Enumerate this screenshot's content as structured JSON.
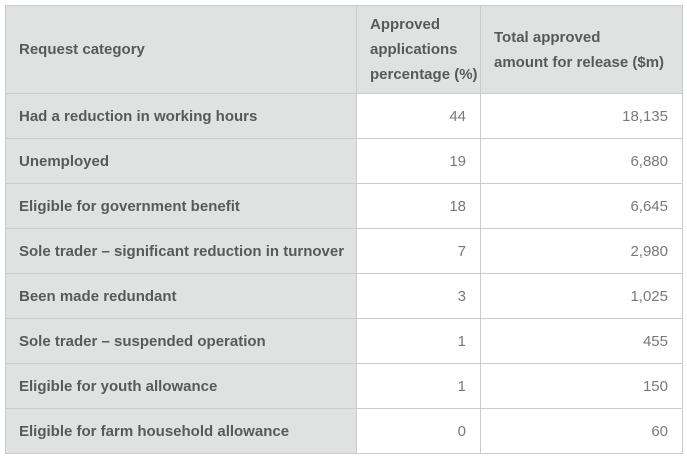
{
  "colors": {
    "label_cell_bg": "#e0e2e2",
    "value_cell_bg": "#ffffff",
    "border": "#cacccc",
    "label_text": "#57595b",
    "value_text": "#77797b"
  },
  "table": {
    "columns": [
      {
        "label": "Request category",
        "lines": [
          "Request category"
        ]
      },
      {
        "label": "Approved applications percentage (%)",
        "lines": [
          "Approved",
          "applications",
          "percentage (%)"
        ]
      },
      {
        "label": "Total approved amount for release ($m)",
        "lines": [
          "Total approved",
          "amount for release ($m)"
        ]
      }
    ],
    "rows": [
      {
        "category": "Had a reduction in working hours",
        "percentage": "44",
        "amount": "18,135"
      },
      {
        "category": "Unemployed",
        "percentage": "19",
        "amount": "6,880"
      },
      {
        "category": "Eligible for government benefit",
        "percentage": "18",
        "amount": "6,645"
      },
      {
        "category": "Sole trader – significant reduction in turnover",
        "percentage": "7",
        "amount": "2,980"
      },
      {
        "category": "Been made redundant",
        "percentage": "3",
        "amount": "1,025"
      },
      {
        "category": "Sole trader – suspended operation",
        "percentage": "1",
        "amount": "455"
      },
      {
        "category": "Eligible for youth allowance",
        "percentage": "1",
        "amount": "150"
      },
      {
        "category": "Eligible for farm household allowance",
        "percentage": "0",
        "amount": "60"
      }
    ]
  },
  "chart_data": {
    "type": "table",
    "columns": [
      "Request category",
      "Approved applications percentage (%)",
      "Total approved amount for release ($m)"
    ],
    "rows": [
      [
        "Had a reduction in working hours",
        44,
        18135
      ],
      [
        "Unemployed",
        19,
        6880
      ],
      [
        "Eligible for government benefit",
        18,
        6645
      ],
      [
        "Sole trader – significant reduction in turnover",
        7,
        2980
      ],
      [
        "Been made redundant",
        3,
        1025
      ],
      [
        "Sole trader – suspended operation",
        1,
        455
      ],
      [
        "Eligible for youth allowance",
        1,
        150
      ],
      [
        "Eligible for farm household allowance",
        0,
        60
      ]
    ]
  }
}
